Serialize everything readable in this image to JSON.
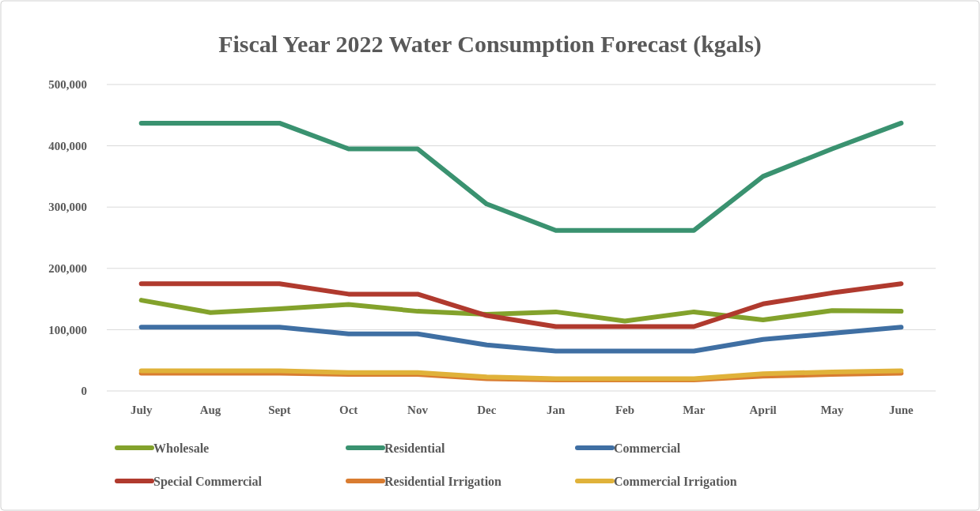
{
  "chart_data": {
    "type": "line",
    "title": "Fiscal Year 2022 Water Consumption Forecast (kgals)",
    "categories": [
      "July",
      "Aug",
      "Sept",
      "Oct",
      "Nov",
      "Dec",
      "Jan",
      "Feb",
      "Mar",
      "April",
      "May",
      "June"
    ],
    "series": [
      {
        "name": "Wholesale",
        "color": "#83a22c",
        "values": [
          148000,
          128000,
          134000,
          141000,
          130000,
          125000,
          129000,
          114000,
          129000,
          116000,
          131000,
          130000
        ]
      },
      {
        "name": "Residential",
        "color": "#3a9270",
        "values": [
          437000,
          437000,
          437000,
          395000,
          395000,
          305000,
          262000,
          262000,
          262000,
          350000,
          395000,
          437000
        ]
      },
      {
        "name": "Commercial",
        "color": "#3f6fa3",
        "values": [
          104000,
          104000,
          104000,
          93000,
          93000,
          75000,
          65000,
          65000,
          65000,
          84000,
          94000,
          104000
        ]
      },
      {
        "name": "Special Commercial",
        "color": "#b03a2e",
        "values": [
          175000,
          175000,
          175000,
          158000,
          158000,
          123000,
          105000,
          105000,
          105000,
          142000,
          160000,
          175000
        ]
      },
      {
        "name": "Residential Irrigation",
        "color": "#d97c30",
        "values": [
          29000,
          29000,
          29000,
          27000,
          27000,
          20000,
          18000,
          18000,
          18000,
          24000,
          27000,
          29000
        ]
      },
      {
        "name": "Commercial Irrigation",
        "color": "#e0b23a",
        "values": [
          33000,
          33000,
          33000,
          30000,
          30000,
          23000,
          20000,
          20000,
          20000,
          28000,
          31000,
          33000
        ]
      }
    ],
    "ylim": [
      0,
      500000
    ],
    "yticks": [
      {
        "value": 0,
        "label": "0"
      },
      {
        "value": 100000,
        "label": "100,000"
      },
      {
        "value": 200000,
        "label": "200,000"
      },
      {
        "value": 300000,
        "label": "300,000"
      },
      {
        "value": 400000,
        "label": "400,000"
      },
      {
        "value": 500000,
        "label": "500,000"
      }
    ],
    "grid": "y",
    "legend": "bottom",
    "marker": "none",
    "line_style": "solid"
  }
}
